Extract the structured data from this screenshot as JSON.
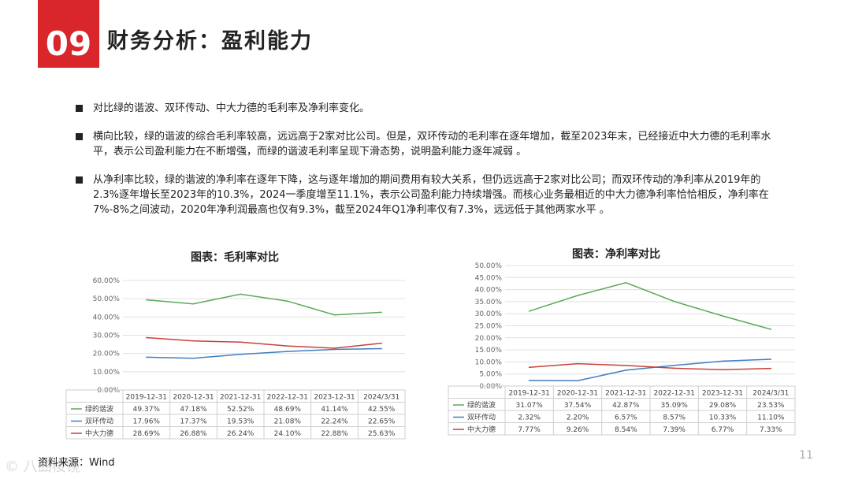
{
  "header": {
    "number": "09",
    "title": "财务分析：盈利能力"
  },
  "bullets": [
    "对比绿的谐波、双环传动、中大力德的毛利率及净利率变化。",
    "横向比较，绿的谐波的综合毛利率较高，远远高于2家对比公司。但是，双环传动的毛利率在逐年增加，截至2023年末，已经接近中大力德的毛利率水平，表示公司盈利能力在不断增强，而绿的谐波毛利率呈现下滑态势，说明盈利能力逐年减弱 。",
    "从净利率比较，绿的谐波的净利率在逐年下降，这与逐年增加的期间费用有较大关系，但仍远远高于2家对比公司；而双环传动的净利率从2019年的2.3%逐年增长至2023年的10.3%，2024一季度增至11.1%，表示公司盈利能力持续增强。而核心业务最相近的中大力德净利率恰恰相反，净利率在7%-8%之间波动，2020年净利润最高也仅有9.3%，截至2024年Q1净利率仅有7.3%，远远低于其他两家水平 。"
  ],
  "chart_data": [
    {
      "type": "line",
      "title": "图表：毛利率对比",
      "categories": [
        "2019-12-31",
        "2020-12-31",
        "2021-12-31",
        "2022-12-31",
        "2023-12-31",
        "2024/3/31"
      ],
      "ylim": [
        0,
        60
      ],
      "yticks": [
        "0.00%",
        "10.00%",
        "20.00%",
        "30.00%",
        "40.00%",
        "50.00%",
        "60.00%"
      ],
      "grid": true,
      "legend": "data-table",
      "series": [
        {
          "name": "绿的谐波",
          "color": "#5aa95a",
          "values": [
            49.37,
            47.18,
            52.52,
            48.69,
            41.14,
            42.55
          ],
          "labels": [
            "49.37%",
            "47.18%",
            "52.52%",
            "48.69%",
            "41.14%",
            "42.55%"
          ]
        },
        {
          "name": "双环传动",
          "color": "#3f7fbf",
          "values": [
            17.96,
            17.37,
            19.53,
            21.08,
            22.24,
            22.65
          ],
          "labels": [
            "17.96%",
            "17.37%",
            "19.53%",
            "21.08%",
            "22.24%",
            "22.65%"
          ]
        },
        {
          "name": "中大力德",
          "color": "#c9403a",
          "values": [
            28.69,
            26.88,
            26.24,
            24.1,
            22.88,
            25.63
          ],
          "labels": [
            "28.69%",
            "26.88%",
            "26.24%",
            "24.10%",
            "22.88%",
            "25.63%"
          ]
        }
      ]
    },
    {
      "type": "line",
      "title": "图表：净利率对比",
      "categories": [
        "2019-12-31",
        "2020-12-31",
        "2021-12-31",
        "2022-12-31",
        "2023-12-31",
        "2024/3/31"
      ],
      "ylim": [
        0,
        50
      ],
      "yticks": [
        "0.00%",
        "5.00%",
        "10.00%",
        "15.00%",
        "20.00%",
        "25.00%",
        "30.00%",
        "35.00%",
        "40.00%",
        "45.00%",
        "50.00%"
      ],
      "grid": true,
      "legend": "data-table",
      "series": [
        {
          "name": "绿的谐波",
          "color": "#5aa95a",
          "values": [
            31.07,
            37.54,
            42.87,
            35.09,
            29.08,
            23.53
          ],
          "labels": [
            "31.07%",
            "37.54%",
            "42.87%",
            "35.09%",
            "29.08%",
            "23.53%"
          ]
        },
        {
          "name": "双环传动",
          "color": "#3f7fbf",
          "values": [
            2.32,
            2.2,
            6.57,
            8.57,
            10.33,
            11.1
          ],
          "labels": [
            "2.32%",
            "2.20%",
            "6.57%",
            "8.57%",
            "10.33%",
            "11.10%"
          ]
        },
        {
          "name": "中大力德",
          "color": "#c9403a",
          "values": [
            7.77,
            9.26,
            8.54,
            7.39,
            6.77,
            7.33
          ],
          "labels": [
            "7.77%",
            "9.26%",
            "8.54%",
            "7.39%",
            "6.77%",
            "7.33%"
          ]
        }
      ]
    }
  ],
  "footer": {
    "source": "资料来源：Wind",
    "page": "11",
    "watermark": "© 八曲棱镜"
  }
}
